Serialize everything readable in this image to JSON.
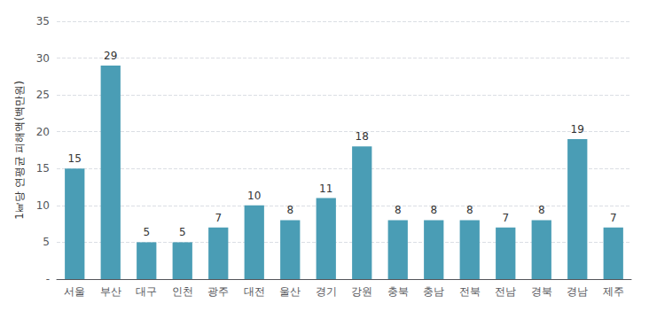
{
  "chart_data": {
    "type": "bar",
    "categories": [
      "서울",
      "부산",
      "대구",
      "인천",
      "광주",
      "대전",
      "울산",
      "경기",
      "강원",
      "충북",
      "충남",
      "전북",
      "전남",
      "경북",
      "경남",
      "제주"
    ],
    "values": [
      15,
      29,
      5,
      5,
      7,
      10,
      8,
      11,
      18,
      8,
      8,
      8,
      7,
      8,
      19,
      7
    ],
    "color": "#4A9DB5",
    "ylabel": "1㎢당 연평균 피해액(백만원)",
    "ylim": [
      0,
      35
    ],
    "yticks": [
      {
        "value": 0,
        "label": "-"
      },
      5,
      10,
      15,
      20,
      25,
      30,
      35
    ],
    "grid": true,
    "data_labels": true
  }
}
